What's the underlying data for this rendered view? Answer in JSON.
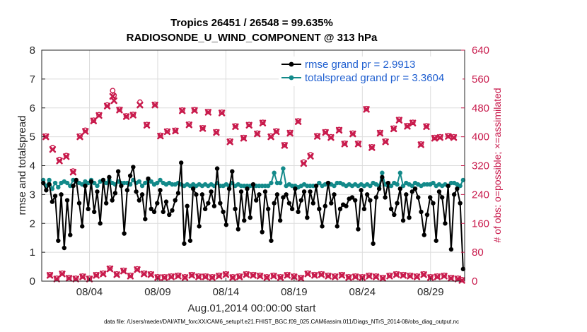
{
  "chart_data": {
    "type": "line",
    "title": [
      "Tropics 26451 / 26548 = 99.635%",
      "RADIOSONDE_U_WIND_COMPONENT @ 313 hPa"
    ],
    "xlabel": "Aug.01,2014 00:00:00 start",
    "ylabel": "rmse and totalspread",
    "ylabel_right": "# of obs: o=possible; ×=assimilated",
    "footer": "data file: /Users/raeder/DAI/ATM_forcXX/CAM6_setup/f.e21.FHIST_BGC.f09_025.CAM6assim.011/Diags_NTrS_2014-08/obs_diag_output.nc",
    "xlim": [
      0.5,
      31.5
    ],
    "xticks": [
      {
        "v": 4,
        "label": "08/04"
      },
      {
        "v": 9,
        "label": "08/09"
      },
      {
        "v": 14,
        "label": "08/14"
      },
      {
        "v": 19,
        "label": "08/19"
      },
      {
        "v": 24,
        "label": "08/24"
      },
      {
        "v": 29,
        "label": "08/29"
      }
    ],
    "ylim": [
      0,
      8
    ],
    "yticks": [
      0,
      1,
      2,
      3,
      4,
      5,
      6,
      7,
      8
    ],
    "ylim_right": [
      0,
      640
    ],
    "yticks_right": [
      0,
      80,
      160,
      240,
      320,
      400,
      480,
      560,
      640
    ],
    "legend": [
      "rmse grand pr = 2.9913",
      "totalspread grand pr = 3.3604"
    ],
    "legend_placement": "top-right",
    "grid": true,
    "colors": {
      "rmse": "#000000",
      "spread": "#138a8a",
      "obs": "#c8194b"
    },
    "rmse": [
      3.4,
      3.15,
      3.35,
      2.75,
      2.95,
      1.4,
      3.0,
      1.15,
      2.8,
      1.6,
      3.3,
      3.5,
      2.7,
      1.9,
      3.3,
      2.5,
      3.45,
      2.4,
      3.1,
      2.0,
      3.5,
      2.7,
      3.6,
      2.8,
      3.05,
      3.8,
      3.3,
      1.65,
      3.15,
      3.65,
      3.95,
      3.1,
      2.8,
      3.0,
      2.15,
      3.55,
      2.5,
      2.4,
      2.7,
      3.15,
      2.4,
      2.75,
      2.3,
      2.45,
      2.8,
      3.05,
      4.1,
      1.3,
      2.6,
      1.4,
      3.2,
      3.0,
      1.9,
      3.0,
      2.5,
      2.7,
      3.1,
      2.6,
      3.9,
      2.7,
      2.4,
      1.95,
      3.2,
      3.8,
      2.5,
      1.8,
      3.1,
      2.1,
      3.2,
      2.2,
      3.35,
      2.8,
      3.0,
      1.7,
      3.1,
      2.5,
      1.4,
      2.7,
      3.0,
      2.1,
      2.9,
      3.0,
      2.7,
      2.5,
      3.2,
      2.4,
      2.8,
      3.1,
      2.2,
      3.1,
      2.7,
      3.3,
      2.5,
      1.9,
      2.6,
      3.4,
      2.7,
      3.0,
      1.9,
      2.5,
      2.65,
      2.6,
      2.85,
      2.9,
      2.8,
      1.8,
      3.15,
      2.5,
      3.0,
      2.8,
      1.3,
      2.9,
      3.2,
      3.6,
      2.9,
      3.4,
      2.5,
      2.3,
      2.7,
      3.2,
      2.1,
      3.0,
      2.2,
      3.1,
      3.2,
      2.9,
      2.4,
      1.6,
      2.3,
      2.9,
      2.7,
      1.4,
      3.1,
      2.9,
      2.0,
      3.3,
      1.1,
      3.0,
      3.2,
      2.7,
      0.42
    ],
    "spread": [
      3.5,
      3.3,
      3.5,
      3.2,
      3.4,
      3.25,
      3.4,
      3.45,
      3.4,
      3.3,
      3.5,
      3.45,
      3.4,
      3.35,
      3.45,
      3.4,
      3.5,
      3.4,
      3.3,
      3.45,
      3.5,
      3.4,
      3.5,
      3.4,
      3.35,
      3.45,
      3.4,
      3.4,
      3.4,
      3.35,
      3.5,
      3.4,
      3.45,
      3.3,
      3.4,
      3.5,
      3.45,
      3.35,
      3.4,
      3.5,
      3.4,
      3.35,
      3.4,
      3.35,
      3.35,
      3.4,
      3.35,
      3.3,
      3.35,
      3.3,
      3.35,
      3.3,
      3.35,
      3.3,
      3.35,
      3.3,
      3.35,
      3.3,
      3.4,
      3.3,
      3.3,
      3.35,
      3.3,
      3.4,
      3.3,
      3.35,
      3.3,
      3.3,
      3.3,
      3.3,
      3.3,
      3.3,
      3.3,
      3.3,
      3.3,
      3.3,
      3.4,
      3.75,
      3.4,
      3.4,
      3.9,
      3.3,
      3.35,
      3.3,
      3.3,
      3.25,
      3.3,
      3.35,
      3.3,
      3.3,
      3.3,
      3.3,
      3.4,
      3.3,
      3.35,
      3.4,
      3.35,
      3.3,
      3.4,
      3.4,
      3.35,
      3.3,
      3.35,
      3.3,
      3.35,
      3.3,
      3.35,
      3.3,
      3.35,
      3.3,
      3.4,
      3.35,
      3.3,
      3.75,
      3.35,
      3.3,
      3.3,
      3.4,
      3.35,
      3.75,
      3.3,
      3.4,
      3.35,
      3.3,
      3.4,
      3.35,
      3.3,
      3.35,
      3.35,
      3.35,
      3.4,
      3.3,
      3.35,
      3.3,
      3.35,
      3.3,
      3.4,
      3.4,
      3.35,
      3.3,
      3.5
    ],
    "obs_possible": [
      [
        0.8,
        402
      ],
      [
        1.1,
        18
      ],
      [
        1.3,
        370
      ],
      [
        1.6,
        8
      ],
      [
        1.8,
        337
      ],
      [
        2.0,
        22
      ],
      [
        2.3,
        348
      ],
      [
        2.5,
        10
      ],
      [
        2.8,
        305
      ],
      [
        3.0,
        8
      ],
      [
        3.3,
        402
      ],
      [
        3.5,
        14
      ],
      [
        3.7,
        418
      ],
      [
        4.0,
        8
      ],
      [
        4.3,
        446
      ],
      [
        4.5,
        18
      ],
      [
        4.7,
        461
      ],
      [
        5.0,
        22
      ],
      [
        5.3,
        488
      ],
      [
        5.5,
        36
      ],
      [
        5.7,
        528
      ],
      [
        5.8,
        515
      ],
      [
        6.0,
        20
      ],
      [
        6.2,
        476
      ],
      [
        6.5,
        30
      ],
      [
        6.7,
        458
      ],
      [
        7.0,
        16
      ],
      [
        7.2,
        462
      ],
      [
        7.5,
        34
      ],
      [
        7.7,
        496
      ],
      [
        8.0,
        22
      ],
      [
        8.2,
        434
      ],
      [
        8.5,
        20
      ],
      [
        8.8,
        490
      ],
      [
        9.0,
        12
      ],
      [
        9.2,
        404
      ],
      [
        9.5,
        12
      ],
      [
        9.7,
        416
      ],
      [
        10.0,
        14
      ],
      [
        10.3,
        418
      ],
      [
        10.5,
        16
      ],
      [
        10.8,
        474
      ],
      [
        11.0,
        12
      ],
      [
        11.3,
        435
      ],
      [
        11.5,
        18
      ],
      [
        11.7,
        475
      ],
      [
        12.0,
        14
      ],
      [
        12.3,
        425
      ],
      [
        12.5,
        14
      ],
      [
        12.7,
        470
      ],
      [
        13.0,
        12
      ],
      [
        13.3,
        414
      ],
      [
        13.5,
        16
      ],
      [
        13.7,
        468
      ],
      [
        14.0,
        20
      ],
      [
        14.3,
        388
      ],
      [
        14.5,
        12
      ],
      [
        14.7,
        430
      ],
      [
        15.0,
        14
      ],
      [
        15.3,
        398
      ],
      [
        15.5,
        20
      ],
      [
        15.7,
        434
      ],
      [
        16.0,
        18
      ],
      [
        16.3,
        410
      ],
      [
        16.5,
        16
      ],
      [
        16.7,
        440
      ],
      [
        17.0,
        12
      ],
      [
        17.3,
        402
      ],
      [
        17.5,
        16
      ],
      [
        17.7,
        416
      ],
      [
        18.0,
        12
      ],
      [
        18.3,
        378
      ],
      [
        18.5,
        18
      ],
      [
        18.7,
        412
      ],
      [
        19.0,
        14
      ],
      [
        19.3,
        444
      ],
      [
        19.5,
        10
      ],
      [
        19.7,
        330
      ],
      [
        20.0,
        22
      ],
      [
        20.2,
        350
      ],
      [
        20.5,
        18
      ],
      [
        20.7,
        403
      ],
      [
        21.0,
        20
      ],
      [
        21.3,
        414
      ],
      [
        21.5,
        16
      ],
      [
        21.7,
        400
      ],
      [
        22.0,
        14
      ],
      [
        22.3,
        420
      ],
      [
        22.5,
        18
      ],
      [
        22.7,
        382
      ],
      [
        23.0,
        12
      ],
      [
        23.3,
        410
      ],
      [
        23.5,
        14
      ],
      [
        23.7,
        382
      ],
      [
        24.0,
        12
      ],
      [
        24.3,
        478
      ],
      [
        24.5,
        16
      ],
      [
        24.7,
        372
      ],
      [
        25.0,
        14
      ],
      [
        25.3,
        412
      ],
      [
        25.5,
        10
      ],
      [
        25.7,
        388
      ],
      [
        26.0,
        16
      ],
      [
        26.3,
        424
      ],
      [
        26.5,
        20
      ],
      [
        26.7,
        448
      ],
      [
        27.0,
        18
      ],
      [
        27.3,
        431
      ],
      [
        27.5,
        16
      ],
      [
        27.7,
        440
      ],
      [
        28.0,
        14
      ],
      [
        28.3,
        380
      ],
      [
        28.5,
        20
      ],
      [
        28.7,
        430
      ],
      [
        29.0,
        12
      ],
      [
        29.3,
        398
      ],
      [
        29.5,
        14
      ],
      [
        29.7,
        400
      ],
      [
        30.0,
        16
      ],
      [
        30.3,
        403
      ],
      [
        30.5,
        10
      ],
      [
        30.7,
        400
      ],
      [
        31.0,
        8
      ],
      [
        31.3,
        4
      ]
    ],
    "obs_assimilated": [
      [
        0.8,
        400
      ],
      [
        1.1,
        16
      ],
      [
        1.3,
        365
      ],
      [
        1.6,
        6
      ],
      [
        1.8,
        333
      ],
      [
        2.0,
        20
      ],
      [
        2.3,
        345
      ],
      [
        2.5,
        8
      ],
      [
        2.8,
        302
      ],
      [
        3.0,
        6
      ],
      [
        3.3,
        400
      ],
      [
        3.5,
        12
      ],
      [
        3.7,
        415
      ],
      [
        4.0,
        6
      ],
      [
        4.3,
        444
      ],
      [
        4.5,
        16
      ],
      [
        4.7,
        459
      ],
      [
        5.0,
        20
      ],
      [
        5.3,
        485
      ],
      [
        5.5,
        34
      ],
      [
        5.7,
        512
      ],
      [
        5.8,
        500
      ],
      [
        6.0,
        18
      ],
      [
        6.2,
        474
      ],
      [
        6.5,
        28
      ],
      [
        6.7,
        456
      ],
      [
        7.0,
        14
      ],
      [
        7.2,
        460
      ],
      [
        7.5,
        32
      ],
      [
        7.7,
        488
      ],
      [
        8.0,
        20
      ],
      [
        8.2,
        432
      ],
      [
        8.5,
        18
      ],
      [
        8.8,
        488
      ],
      [
        9.0,
        10
      ],
      [
        9.2,
        402
      ],
      [
        9.5,
        10
      ],
      [
        9.7,
        414
      ],
      [
        10.0,
        12
      ],
      [
        10.3,
        416
      ],
      [
        10.5,
        14
      ],
      [
        10.8,
        472
      ],
      [
        11.0,
        10
      ],
      [
        11.3,
        433
      ],
      [
        11.5,
        16
      ],
      [
        11.7,
        473
      ],
      [
        12.0,
        12
      ],
      [
        12.3,
        423
      ],
      [
        12.5,
        12
      ],
      [
        12.7,
        468
      ],
      [
        13.0,
        10
      ],
      [
        13.3,
        412
      ],
      [
        13.5,
        14
      ],
      [
        13.7,
        466
      ],
      [
        14.0,
        18
      ],
      [
        14.3,
        386
      ],
      [
        14.5,
        10
      ],
      [
        14.7,
        428
      ],
      [
        15.0,
        12
      ],
      [
        15.3,
        396
      ],
      [
        15.5,
        18
      ],
      [
        15.7,
        432
      ],
      [
        16.0,
        16
      ],
      [
        16.3,
        408
      ],
      [
        16.5,
        14
      ],
      [
        16.7,
        438
      ],
      [
        17.0,
        10
      ],
      [
        17.3,
        400
      ],
      [
        17.5,
        14
      ],
      [
        17.7,
        414
      ],
      [
        18.0,
        10
      ],
      [
        18.3,
        376
      ],
      [
        18.5,
        16
      ],
      [
        18.7,
        410
      ],
      [
        19.0,
        12
      ],
      [
        19.3,
        442
      ],
      [
        19.5,
        8
      ],
      [
        19.7,
        326
      ],
      [
        20.0,
        20
      ],
      [
        20.2,
        346
      ],
      [
        20.5,
        16
      ],
      [
        20.7,
        401
      ],
      [
        21.0,
        18
      ],
      [
        21.3,
        412
      ],
      [
        21.5,
        14
      ],
      [
        21.7,
        398
      ],
      [
        22.0,
        12
      ],
      [
        22.3,
        418
      ],
      [
        22.5,
        16
      ],
      [
        22.7,
        380
      ],
      [
        23.0,
        10
      ],
      [
        23.3,
        408
      ],
      [
        23.5,
        12
      ],
      [
        23.7,
        380
      ],
      [
        24.0,
        10
      ],
      [
        24.3,
        476
      ],
      [
        24.5,
        14
      ],
      [
        24.7,
        370
      ],
      [
        25.0,
        12
      ],
      [
        25.3,
        410
      ],
      [
        25.5,
        8
      ],
      [
        25.7,
        386
      ],
      [
        26.0,
        14
      ],
      [
        26.3,
        422
      ],
      [
        26.5,
        18
      ],
      [
        26.7,
        446
      ],
      [
        27.0,
        16
      ],
      [
        27.3,
        429
      ],
      [
        27.5,
        14
      ],
      [
        27.7,
        438
      ],
      [
        28.0,
        12
      ],
      [
        28.3,
        378
      ],
      [
        28.5,
        18
      ],
      [
        28.7,
        428
      ],
      [
        29.0,
        10
      ],
      [
        29.3,
        396
      ],
      [
        29.5,
        12
      ],
      [
        29.7,
        398
      ],
      [
        30.0,
        14
      ],
      [
        30.3,
        401
      ],
      [
        30.5,
        8
      ],
      [
        30.7,
        398
      ],
      [
        31.0,
        6
      ],
      [
        31.3,
        2
      ]
    ]
  }
}
